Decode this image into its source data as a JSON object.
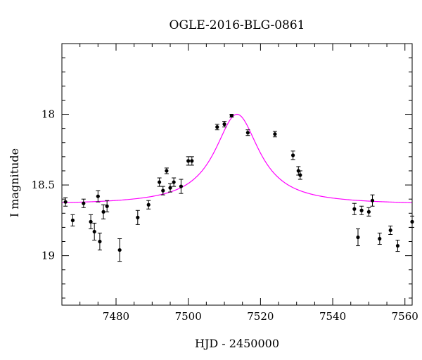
{
  "chart_data": {
    "type": "scatter",
    "title": "OGLE-2016-BLG-0861",
    "xlabel": "HJD - 2450000",
    "ylabel": "I magnitude",
    "xlim": [
      7465,
      7562
    ],
    "ylim": [
      19.35,
      17.5
    ],
    "y_inverted": true,
    "grid": false,
    "legend": "none",
    "x_ticks": [
      7480,
      7500,
      7520,
      7540,
      7560
    ],
    "y_ticks": [
      18,
      18.5,
      19
    ],
    "model_color": "#ff00ff",
    "model": {
      "t0": 7513.5,
      "peak_mag": 18.0,
      "baseline_mag": 18.64,
      "width": 7.5
    },
    "points": [
      {
        "x": 7466,
        "y": 18.62,
        "err": 0.03
      },
      {
        "x": 7468,
        "y": 18.75,
        "err": 0.04
      },
      {
        "x": 7471,
        "y": 18.63,
        "err": 0.03
      },
      {
        "x": 7473,
        "y": 18.76,
        "err": 0.05
      },
      {
        "x": 7474,
        "y": 18.83,
        "err": 0.06
      },
      {
        "x": 7475,
        "y": 18.58,
        "err": 0.04
      },
      {
        "x": 7475.5,
        "y": 18.9,
        "err": 0.06
      },
      {
        "x": 7476.5,
        "y": 18.69,
        "err": 0.05
      },
      {
        "x": 7477.5,
        "y": 18.65,
        "err": 0.04
      },
      {
        "x": 7481,
        "y": 18.96,
        "err": 0.08
      },
      {
        "x": 7486,
        "y": 18.73,
        "err": 0.05
      },
      {
        "x": 7489,
        "y": 18.64,
        "err": 0.03
      },
      {
        "x": 7492,
        "y": 18.48,
        "err": 0.03
      },
      {
        "x": 7493,
        "y": 18.54,
        "err": 0.03
      },
      {
        "x": 7494,
        "y": 18.4,
        "err": 0.02
      },
      {
        "x": 7495,
        "y": 18.52,
        "err": 0.03
      },
      {
        "x": 7496,
        "y": 18.48,
        "err": 0.03
      },
      {
        "x": 7498,
        "y": 18.51,
        "err": 0.05
      },
      {
        "x": 7500,
        "y": 18.33,
        "err": 0.03
      },
      {
        "x": 7501,
        "y": 18.33,
        "err": 0.03
      },
      {
        "x": 7508,
        "y": 18.09,
        "err": 0.02
      },
      {
        "x": 7510,
        "y": 18.07,
        "err": 0.02
      },
      {
        "x": 7512,
        "y": 18.01,
        "err": 0.01
      },
      {
        "x": 7516.5,
        "y": 18.13,
        "err": 0.02
      },
      {
        "x": 7524,
        "y": 18.14,
        "err": 0.02
      },
      {
        "x": 7529,
        "y": 18.29,
        "err": 0.03
      },
      {
        "x": 7530.5,
        "y": 18.4,
        "err": 0.03
      },
      {
        "x": 7531,
        "y": 18.43,
        "err": 0.03
      },
      {
        "x": 7546,
        "y": 18.67,
        "err": 0.04
      },
      {
        "x": 7547,
        "y": 18.87,
        "err": 0.06
      },
      {
        "x": 7548,
        "y": 18.68,
        "err": 0.03
      },
      {
        "x": 7550,
        "y": 18.69,
        "err": 0.03
      },
      {
        "x": 7551,
        "y": 18.61,
        "err": 0.04
      },
      {
        "x": 7553,
        "y": 18.88,
        "err": 0.04
      },
      {
        "x": 7556,
        "y": 18.82,
        "err": 0.03
      },
      {
        "x": 7558,
        "y": 18.93,
        "err": 0.04
      },
      {
        "x": 7562,
        "y": 18.76,
        "err": 0.04
      }
    ]
  }
}
